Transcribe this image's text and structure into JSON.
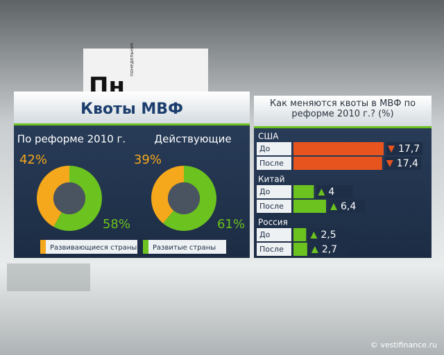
{
  "header": {
    "title": "Квоты МВФ"
  },
  "chart_data": [
    {
      "type": "pie",
      "title": "По реформе 2010 г.",
      "categories": [
        "Развивающиеся страны",
        "Развитые страны"
      ],
      "values": [
        42,
        58
      ],
      "value_labels": [
        "42%",
        "58%"
      ],
      "colors": [
        "#f5a81c",
        "#6cc21f"
      ]
    },
    {
      "type": "pie",
      "title": "Действующие",
      "categories": [
        "Развивающиеся страны",
        "Развитые страны"
      ],
      "values": [
        39,
        61
      ],
      "value_labels": [
        "39%",
        "61%"
      ],
      "colors": [
        "#f5a81c",
        "#6cc21f"
      ]
    },
    {
      "type": "bar",
      "orientation": "horizontal",
      "title": "Как меняются квоты в МВФ по реформе 2010 г.? (%)",
      "categories": [
        "США",
        "Китай",
        "Россия"
      ],
      "category_colors": [
        "#e8541e",
        "#6cc21f",
        "#6cc21f"
      ],
      "trends": [
        "down",
        "up",
        "up"
      ],
      "series": [
        {
          "name": "До",
          "values": [
            17.7,
            4,
            2.5
          ],
          "value_labels": [
            "17,7",
            "4",
            "2,5"
          ]
        },
        {
          "name": "После",
          "values": [
            17.4,
            6.4,
            2.7
          ],
          "value_labels": [
            "17,4",
            "6,4",
            "2,7"
          ]
        }
      ]
    }
  ],
  "scene": {
    "studio_sign": "Пн",
    "studio_sign_caption": "понедельник",
    "watermark": "© vestifinance.ru"
  }
}
